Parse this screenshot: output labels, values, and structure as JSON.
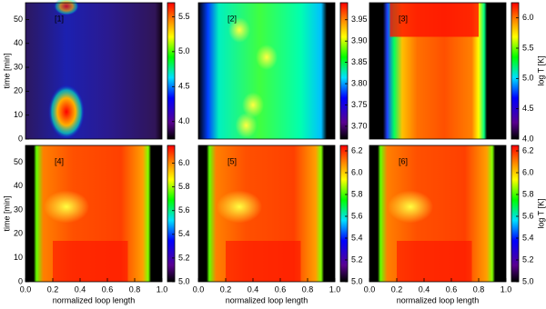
{
  "chart_data": [
    {
      "type": "heatmap",
      "label": "[1]",
      "ylabel": "time [min]",
      "ylim": [
        0,
        57
      ],
      "yticks": [
        0,
        10,
        20,
        30,
        40,
        50
      ],
      "clim": [
        3.75,
        5.7
      ],
      "cticks": [
        {
          "value": 4.0,
          "label": "4.0"
        },
        {
          "value": 4.5,
          "label": "4.5"
        },
        {
          "value": 5.0,
          "label": "5.0"
        },
        {
          "value": 5.5,
          "label": "5.5"
        }
      ]
    },
    {
      "type": "heatmap",
      "label": "[2]",
      "clim": [
        3.67,
        3.99
      ],
      "cticks": [
        {
          "value": 3.7,
          "label": "3.70"
        },
        {
          "value": 3.75,
          "label": "3.75"
        },
        {
          "value": 3.8,
          "label": "3.80"
        },
        {
          "value": 3.85,
          "label": "3.85"
        },
        {
          "value": 3.9,
          "label": "3.90"
        },
        {
          "value": 3.95,
          "label": "3.95"
        }
      ]
    },
    {
      "type": "heatmap",
      "label": "[3]",
      "clabel": "log T [K]",
      "clim": [
        4.0,
        6.25
      ],
      "cticks": [
        {
          "value": 4.0,
          "label": "4.0"
        },
        {
          "value": 4.5,
          "label": "4.5"
        },
        {
          "value": 5.0,
          "label": "5.0"
        },
        {
          "value": 5.5,
          "label": "5.5"
        },
        {
          "value": 6.0,
          "label": "6.0"
        }
      ]
    },
    {
      "type": "heatmap",
      "label": "[4]",
      "ylabel": "time [min]",
      "ylim": [
        0,
        57
      ],
      "yticks": [
        0,
        10,
        20,
        30,
        40,
        50
      ],
      "xlabel": "normalized loop length",
      "xlim": [
        0,
        1
      ],
      "xticks": [
        {
          "value": 0,
          "label": "0.0"
        },
        {
          "value": 0.2,
          "label": "0.2"
        },
        {
          "value": 0.4,
          "label": "0.4"
        },
        {
          "value": 0.6,
          "label": "0.6"
        },
        {
          "value": 0.8,
          "label": "0.8"
        },
        {
          "value": 1,
          "label": "1.0"
        }
      ],
      "clim": [
        5.0,
        6.15
      ],
      "cticks": [
        {
          "value": 5.0,
          "label": "5.0"
        },
        {
          "value": 5.2,
          "label": "5.2"
        },
        {
          "value": 5.4,
          "label": "5.4"
        },
        {
          "value": 5.6,
          "label": "5.6"
        },
        {
          "value": 5.8,
          "label": "5.8"
        },
        {
          "value": 6.0,
          "label": "6.0"
        }
      ]
    },
    {
      "type": "heatmap",
      "label": "[5]",
      "xlabel": "normalized loop length",
      "xlim": [
        0,
        1
      ],
      "xticks": [
        {
          "value": 0,
          "label": "0.0"
        },
        {
          "value": 0.2,
          "label": "0.2"
        },
        {
          "value": 0.4,
          "label": "0.4"
        },
        {
          "value": 0.6,
          "label": "0.6"
        },
        {
          "value": 0.8,
          "label": "0.8"
        },
        {
          "value": 1,
          "label": "1.0"
        }
      ],
      "clim": [
        5.0,
        6.25
      ],
      "cticks": [
        {
          "value": 5.0,
          "label": "5.0"
        },
        {
          "value": 5.2,
          "label": "5.2"
        },
        {
          "value": 5.4,
          "label": "5.4"
        },
        {
          "value": 5.6,
          "label": "5.6"
        },
        {
          "value": 5.8,
          "label": "5.8"
        },
        {
          "value": 6.0,
          "label": "6.0"
        },
        {
          "value": 6.2,
          "label": "6.2"
        }
      ]
    },
    {
      "type": "heatmap",
      "label": "[6]",
      "clabel": "log T [K]",
      "xlabel": "normalized loop length",
      "xlim": [
        0,
        1
      ],
      "xticks": [
        {
          "value": 0,
          "label": "0.0"
        },
        {
          "value": 0.2,
          "label": "0.2"
        },
        {
          "value": 0.4,
          "label": "0.4"
        },
        {
          "value": 0.6,
          "label": "0.6"
        },
        {
          "value": 0.8,
          "label": "0.8"
        },
        {
          "value": 1,
          "label": "1.0"
        }
      ],
      "clim": [
        5.0,
        6.25
      ],
      "cticks": [
        {
          "value": 5.0,
          "label": "5.0"
        },
        {
          "value": 5.2,
          "label": "5.2"
        },
        {
          "value": 5.4,
          "label": "5.4"
        },
        {
          "value": 5.6,
          "label": "5.6"
        },
        {
          "value": 5.8,
          "label": "5.8"
        },
        {
          "value": 6.0,
          "label": "6.0"
        },
        {
          "value": 6.2,
          "label": "6.2"
        }
      ]
    }
  ]
}
